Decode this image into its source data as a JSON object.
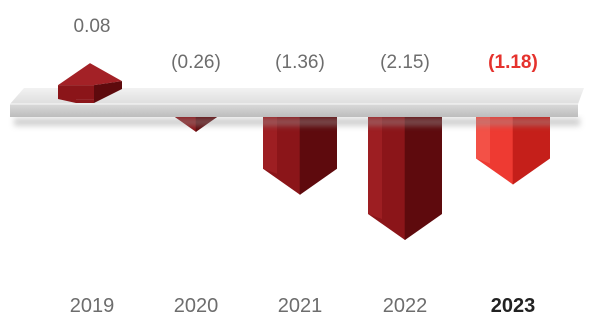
{
  "chart_data": {
    "type": "bar",
    "categories": [
      "2019",
      "2020",
      "2021",
      "2022",
      "2023"
    ],
    "values": [
      0.08,
      -0.26,
      -1.36,
      -2.15,
      -1.18
    ],
    "labels": [
      "0.08",
      "(0.26)",
      "(1.36)",
      "(2.15)",
      "(1.18)"
    ],
    "highlight_index": 4,
    "title": "",
    "xlabel": "",
    "ylabel": "",
    "grid": false,
    "legend": "none",
    "colors": {
      "bar": "#8b1519",
      "bar_dark": "#5e0a0d",
      "bar_light": "#a32126",
      "highlight": "#ee3a32",
      "highlight_dark": "#c51f1a",
      "highlight_light": "#f45a4f",
      "shelf": "#e7e7e7",
      "label": "#6d6d6d",
      "label_highlight": "#e5322d"
    }
  }
}
